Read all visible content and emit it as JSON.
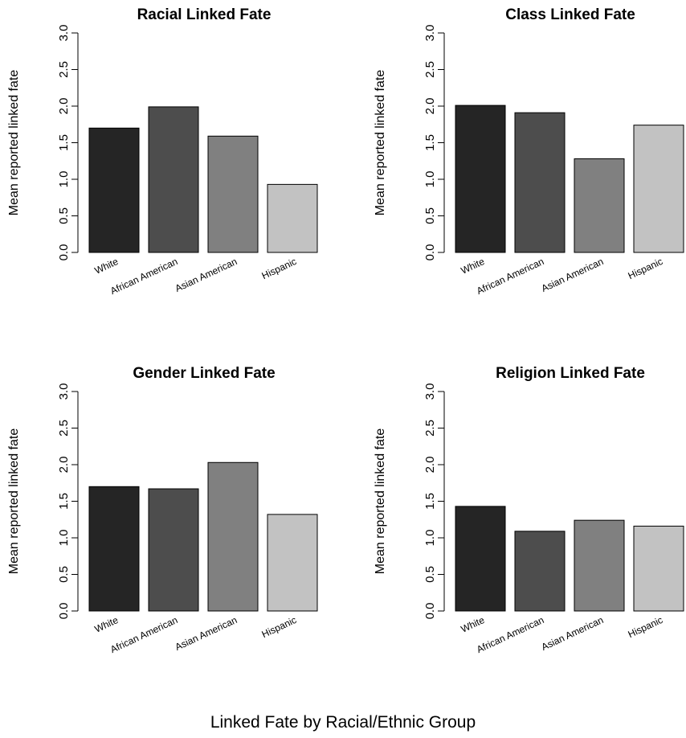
{
  "caption": "Linked Fate by Racial/Ethnic Group",
  "colors": [
    "#252525",
    "#4d4d4d",
    "#808080",
    "#c2c2c2"
  ],
  "chart_data": [
    {
      "type": "bar",
      "title": "Racial Linked Fate",
      "ylabel": "Mean reported linked fate",
      "ylim": [
        0,
        3.0
      ],
      "yticks": [
        "0.0",
        "0.5",
        "1.0",
        "1.5",
        "2.0",
        "2.5",
        "3.0"
      ],
      "categories": [
        "White",
        "African American",
        "Asian American",
        "Hispanic"
      ],
      "values": [
        1.7,
        1.99,
        1.59,
        0.93
      ]
    },
    {
      "type": "bar",
      "title": "Class Linked Fate",
      "ylabel": "Mean reported linked fate",
      "ylim": [
        0,
        3.0
      ],
      "yticks": [
        "0.0",
        "0.5",
        "1.0",
        "1.5",
        "2.0",
        "2.5",
        "3.0"
      ],
      "categories": [
        "White",
        "African American",
        "Asian American",
        "Hispanic"
      ],
      "values": [
        2.01,
        1.91,
        1.28,
        1.74
      ]
    },
    {
      "type": "bar",
      "title": "Gender Linked Fate",
      "ylabel": "Mean reported linked fate",
      "ylim": [
        0,
        3.0
      ],
      "yticks": [
        "0.0",
        "0.5",
        "1.0",
        "1.5",
        "2.0",
        "2.5",
        "3.0"
      ],
      "categories": [
        "White",
        "African American",
        "Asian American",
        "Hispanic"
      ],
      "values": [
        1.7,
        1.67,
        2.03,
        1.32
      ]
    },
    {
      "type": "bar",
      "title": "Religion Linked Fate",
      "ylabel": "Mean reported linked fate",
      "ylim": [
        0,
        3.0
      ],
      "yticks": [
        "0.0",
        "0.5",
        "1.0",
        "1.5",
        "2.0",
        "2.5",
        "3.0"
      ],
      "categories": [
        "White",
        "African American",
        "Asian American",
        "Hispanic"
      ],
      "values": [
        1.43,
        1.09,
        1.24,
        1.16
      ]
    }
  ]
}
